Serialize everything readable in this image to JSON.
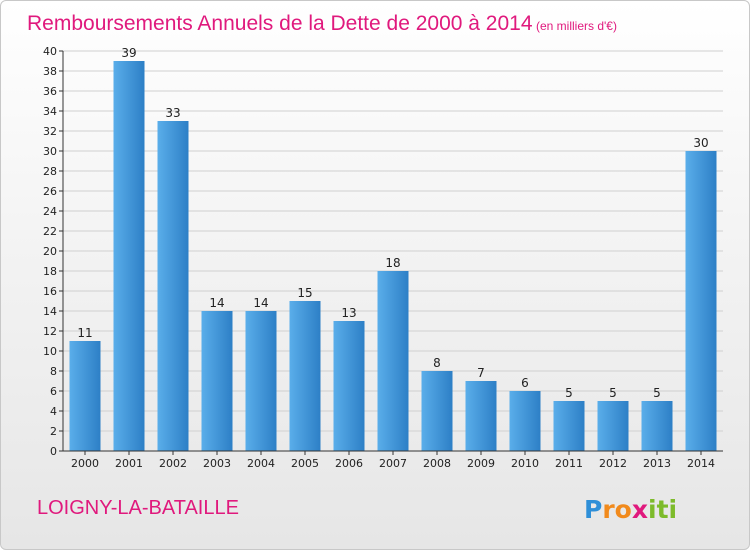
{
  "chart_data": {
    "type": "bar",
    "title": "Remboursements Annuels de la Dette de 2000 à 2014",
    "subtitle": "(en milliers d'€)",
    "categories": [
      "2000",
      "2001",
      "2002",
      "2003",
      "2004",
      "2005",
      "2006",
      "2007",
      "2008",
      "2009",
      "2010",
      "2011",
      "2012",
      "2013",
      "2014"
    ],
    "values": [
      11,
      39,
      33,
      14,
      14,
      15,
      13,
      18,
      8,
      7,
      6,
      5,
      5,
      5,
      30
    ],
    "ylim": [
      0,
      40
    ],
    "yticks": [
      0,
      2,
      4,
      6,
      8,
      10,
      12,
      14,
      16,
      18,
      20,
      22,
      24,
      26,
      28,
      30,
      32,
      34,
      36,
      38,
      40
    ],
    "grid": true,
    "bar_color": "#3a8fd6"
  },
  "place_name": "LOIGNY-LA-BATAILLE",
  "logo": {
    "letters": [
      "P",
      "r",
      "o",
      "x",
      "i",
      "t",
      "i"
    ],
    "colors": [
      "#2e8fd8",
      "#f18a1c",
      "#f18a1c",
      "#e0197d",
      "#7dbb2b",
      "#7dbb2b",
      "#7dbb2b"
    ]
  }
}
